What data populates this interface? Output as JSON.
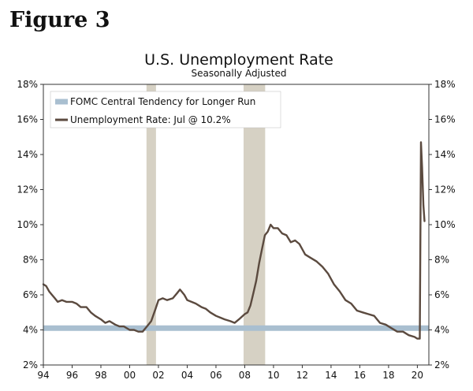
{
  "figure_label": "Figure 3",
  "chart_data": {
    "type": "line",
    "title": "U.S. Unemployment Rate",
    "subtitle": "Seasonally Adjusted",
    "xlabel": "",
    "ylabel": "",
    "xlim": [
      1994,
      2020.8
    ],
    "ylim": [
      2,
      18
    ],
    "x_ticks": [
      1994,
      1996,
      1998,
      2000,
      2002,
      2004,
      2006,
      2008,
      2010,
      2012,
      2014,
      2016,
      2018,
      2020
    ],
    "x_tick_labels": [
      "94",
      "96",
      "98",
      "00",
      "02",
      "04",
      "06",
      "08",
      "10",
      "12",
      "14",
      "16",
      "18",
      "20"
    ],
    "y_ticks": [
      2,
      4,
      6,
      8,
      10,
      12,
      14,
      16,
      18
    ],
    "y_tick_labels": [
      "2%",
      "4%",
      "6%",
      "8%",
      "10%",
      "12%",
      "14%",
      "16%",
      "18%"
    ],
    "recessions": [
      {
        "start": 2001.17,
        "end": 2001.83
      },
      {
        "start": 2007.92,
        "end": 2009.42
      }
    ],
    "series": [
      {
        "name": "FOMC Central Tendency for Longer Run",
        "kind": "band",
        "value": 4.1,
        "color": "#a9bfd0"
      },
      {
        "name": "Unemployment Rate: Jul @ 10.2%",
        "kind": "line",
        "color": "#5b4a3f",
        "x": [
          1994.0,
          1994.2,
          1994.4,
          1994.6,
          1994.8,
          1995.0,
          1995.3,
          1995.6,
          1996.0,
          1996.3,
          1996.6,
          1997.0,
          1997.3,
          1997.6,
          1998.0,
          1998.3,
          1998.6,
          1999.0,
          1999.3,
          1999.6,
          2000.0,
          2000.3,
          2000.6,
          2000.9,
          2001.2,
          2001.5,
          2001.8,
          2002.0,
          2002.3,
          2002.6,
          2003.0,
          2003.3,
          2003.5,
          2003.8,
          2004.0,
          2004.3,
          2004.6,
          2005.0,
          2005.3,
          2005.6,
          2006.0,
          2006.3,
          2006.6,
          2007.0,
          2007.3,
          2007.6,
          2008.0,
          2008.2,
          2008.4,
          2008.6,
          2008.8,
          2009.0,
          2009.2,
          2009.4,
          2009.6,
          2009.8,
          2010.0,
          2010.3,
          2010.6,
          2010.9,
          2011.2,
          2011.5,
          2011.8,
          2012.2,
          2012.6,
          2013.0,
          2013.4,
          2013.8,
          2014.2,
          2014.6,
          2015.0,
          2015.4,
          2015.8,
          2016.2,
          2016.6,
          2017.0,
          2017.4,
          2017.8,
          2018.2,
          2018.6,
          2019.0,
          2019.4,
          2019.8,
          2020.0,
          2020.17,
          2020.25,
          2020.33,
          2020.42,
          2020.5
        ],
        "y": [
          6.6,
          6.5,
          6.2,
          6.0,
          5.8,
          5.6,
          5.7,
          5.6,
          5.6,
          5.5,
          5.3,
          5.3,
          5.0,
          4.8,
          4.6,
          4.4,
          4.5,
          4.3,
          4.2,
          4.2,
          4.0,
          4.0,
          3.9,
          3.9,
          4.2,
          4.5,
          5.2,
          5.7,
          5.8,
          5.7,
          5.8,
          6.1,
          6.3,
          6.0,
          5.7,
          5.6,
          5.5,
          5.3,
          5.2,
          5.0,
          4.8,
          4.7,
          4.6,
          4.5,
          4.4,
          4.6,
          4.9,
          5.0,
          5.4,
          6.1,
          6.8,
          7.8,
          8.6,
          9.4,
          9.6,
          10.0,
          9.8,
          9.8,
          9.5,
          9.4,
          9.0,
          9.1,
          8.9,
          8.3,
          8.1,
          7.9,
          7.6,
          7.2,
          6.6,
          6.2,
          5.7,
          5.5,
          5.1,
          5.0,
          4.9,
          4.8,
          4.4,
          4.3,
          4.1,
          3.9,
          3.9,
          3.7,
          3.6,
          3.5,
          3.5,
          14.7,
          13.3,
          11.1,
          10.2
        ],
        "end_label": "Jul @ 10.2%"
      }
    ],
    "legend_position": "top-left"
  }
}
